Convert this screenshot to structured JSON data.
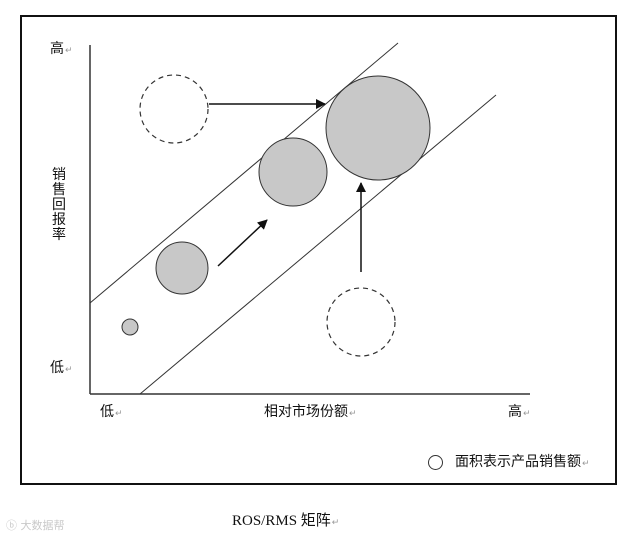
{
  "diagram": {
    "y_high": "高",
    "y_low": "低",
    "y_title": "销售回报率",
    "x_low": "低",
    "x_title": "相对市场份额",
    "x_high": "高",
    "legend_text": "面积表示产品销售额",
    "caption": "ROS/RMS 矩阵",
    "watermark": "大数据帮",
    "return_mark": "↵",
    "colors": {
      "bubble_fill": "#c8c8c8",
      "line": "#333333"
    },
    "bubbles": [
      {
        "name": "bubble-small",
        "style": "filled"
      },
      {
        "name": "bubble-medium",
        "style": "filled"
      },
      {
        "name": "bubble-large",
        "style": "filled"
      },
      {
        "name": "bubble-xlarge",
        "style": "filled"
      },
      {
        "name": "bubble-dashed-top-left",
        "style": "dashed"
      },
      {
        "name": "bubble-dashed-bottom-right",
        "style": "dashed"
      }
    ]
  }
}
